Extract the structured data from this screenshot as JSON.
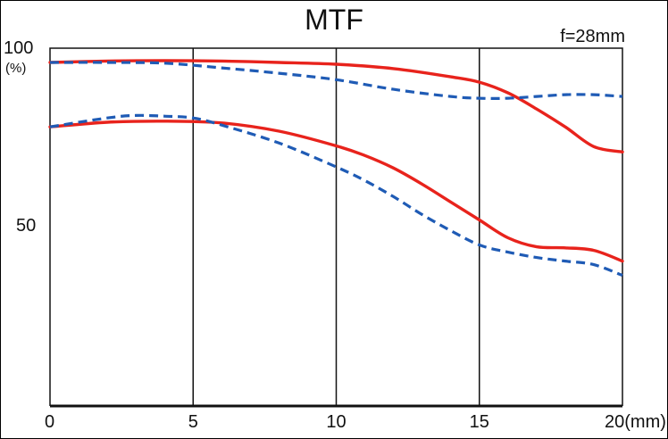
{
  "chart_data": {
    "type": "line",
    "title": "MTF",
    "annotation": "f=28mm",
    "xlim": [
      0,
      20
    ],
    "ylim": [
      0,
      100
    ],
    "x_ticks": [
      "0",
      "5",
      "10",
      "15",
      "20(mm)"
    ],
    "x_tick_values": [
      0,
      5,
      10,
      15,
      20
    ],
    "y_tick_labels": {
      "top": "100",
      "unit": "(%)",
      "mid": "50"
    },
    "grid": "vertical lines at x = 5, 10, 15",
    "series": [
      {
        "style": "solid",
        "color": "#e8231c",
        "x": [
          0,
          2,
          4,
          6,
          8,
          10,
          12,
          14,
          15,
          16,
          17,
          18,
          19,
          20
        ],
        "y": [
          96,
          96.4,
          96.5,
          96.4,
          96,
          95.5,
          94.3,
          92,
          90.5,
          87.5,
          83,
          78,
          72.5,
          71
        ]
      },
      {
        "style": "dashed",
        "color": "#1f5bb5",
        "x": [
          0,
          2,
          4,
          6,
          8,
          10,
          12,
          14,
          15,
          16,
          17,
          18,
          19,
          20
        ],
        "y": [
          96,
          96,
          95.8,
          94.5,
          93,
          91.2,
          88.5,
          86.5,
          86,
          86,
          86.5,
          87,
          87,
          86.5
        ]
      },
      {
        "style": "solid",
        "color": "#e8231c",
        "x": [
          0,
          2,
          4,
          6,
          8,
          10,
          11,
          12,
          13,
          14,
          15,
          16,
          17,
          18,
          19,
          20
        ],
        "y": [
          78,
          79.3,
          79.6,
          79.1,
          76.8,
          72.7,
          70,
          66.5,
          62,
          57,
          52,
          47,
          44.5,
          44.2,
          43.5,
          40.5
        ]
      },
      {
        "style": "dashed",
        "color": "#1f5bb5",
        "x": [
          0,
          2,
          3,
          4,
          5,
          6,
          8,
          10,
          11,
          12,
          13,
          14,
          15,
          16,
          17,
          18,
          19,
          20
        ],
        "y": [
          78,
          80.5,
          81.2,
          81,
          80.5,
          78.5,
          73.5,
          66.8,
          63,
          58.5,
          53.5,
          49,
          45,
          43,
          41.5,
          40.5,
          39.5,
          36.5
        ]
      }
    ]
  }
}
